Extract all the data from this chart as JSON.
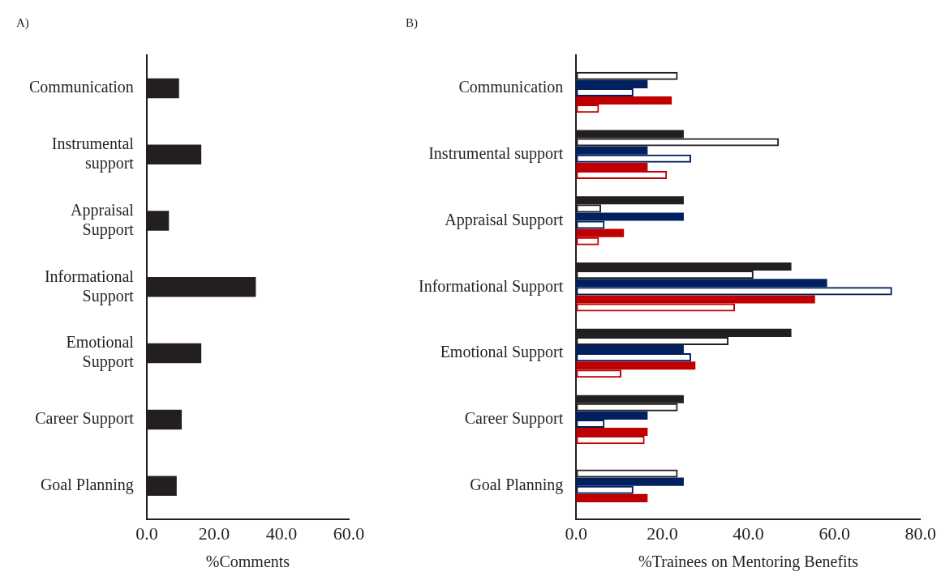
{
  "chart_data": [
    {
      "type": "bar",
      "orientation": "horizontal",
      "title": "A)",
      "xlabel": "%Comments",
      "categories": [
        "Communication",
        "Instrumental support",
        "Appraisal Support",
        "Informational Support",
        "Emotional Support",
        "Career Support",
        "Goal Planning"
      ],
      "series": [
        {
          "color": "#231f20",
          "values": [
            9.6,
            16.2,
            6.6,
            32.4,
            16.2,
            10.4,
            8.9
          ]
        }
      ],
      "xlim": [
        0,
        60
      ],
      "xticks": [
        {
          "value": 0,
          "label": "0.0"
        },
        {
          "value": 20,
          "label": "20.0"
        },
        {
          "value": 40,
          "label": "40.0"
        },
        {
          "value": 60,
          "label": "60.0"
        }
      ],
      "grid": false
    },
    {
      "type": "bar",
      "orientation": "horizontal",
      "title": "B)",
      "xlabel": "%Trainees on Mentoring Benefits",
      "categories": [
        "Communication",
        "Instrumental support",
        "Appraisal Support",
        "Informational Support",
        "Emotional Support",
        "Career Support",
        "Goal Planning"
      ],
      "series": [
        {
          "color": "#231f20",
          "values": [
            null,
            25.0,
            25.0,
            50.0,
            50.0,
            25.0,
            null
          ]
        },
        {
          "color": "#231f20",
          "values": [
            23.6,
            47.1,
            5.8,
            41.2,
            35.4,
            23.6,
            23.6
          ]
        },
        {
          "color": "#002060",
          "values": [
            16.6,
            16.6,
            25.0,
            58.3,
            25.0,
            16.6,
            25.0
          ]
        },
        {
          "color": "#002060",
          "values": [
            13.3,
            26.7,
            6.6,
            73.4,
            26.7,
            6.6,
            13.3
          ]
        },
        {
          "color": "#c00000",
          "values": [
            22.2,
            16.6,
            11.1,
            55.5,
            27.7,
            16.6,
            16.6
          ]
        },
        {
          "color": "#c00000",
          "values": [
            5.3,
            21.1,
            5.3,
            36.9,
            10.5,
            15.9,
            null
          ]
        }
      ],
      "xlim": [
        0,
        80
      ],
      "xticks": [
        {
          "value": 0,
          "label": "0.0"
        },
        {
          "value": 20,
          "label": "20.0"
        },
        {
          "value": 40,
          "label": "40.0"
        },
        {
          "value": 60,
          "label": "60.0"
        },
        {
          "value": 80,
          "label": "80.0"
        }
      ],
      "grid": false
    }
  ]
}
